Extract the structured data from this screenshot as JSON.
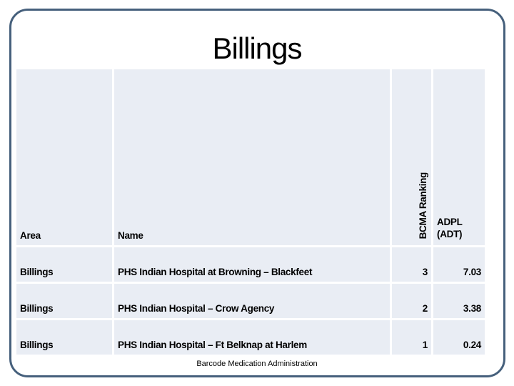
{
  "slide": {
    "title": "Billings",
    "footer": "Barcode Medication Administration"
  },
  "table": {
    "header": {
      "area": "Area",
      "name": "Name",
      "bcma_ranking": "BCMA Ranking",
      "adpl_line1": "ADPL",
      "adpl_line2": "(ADT)"
    },
    "rows": [
      {
        "area": "Billings",
        "name": "PHS Indian Hospital at Browning – Blackfeet",
        "bcma_ranking": "3",
        "adpl_adt": "7.03"
      },
      {
        "area": "Billings",
        "name": "PHS Indian Hospital – Crow Agency",
        "bcma_ranking": "2",
        "adpl_adt": "3.38"
      },
      {
        "area": "Billings",
        "name": "PHS Indian Hospital – Ft Belknap at Harlem",
        "bcma_ranking": "1",
        "adpl_adt": "0.24"
      }
    ]
  },
  "colors": {
    "border": "#46607C",
    "cell_background": "#E9EDF4",
    "text": "#000000"
  }
}
